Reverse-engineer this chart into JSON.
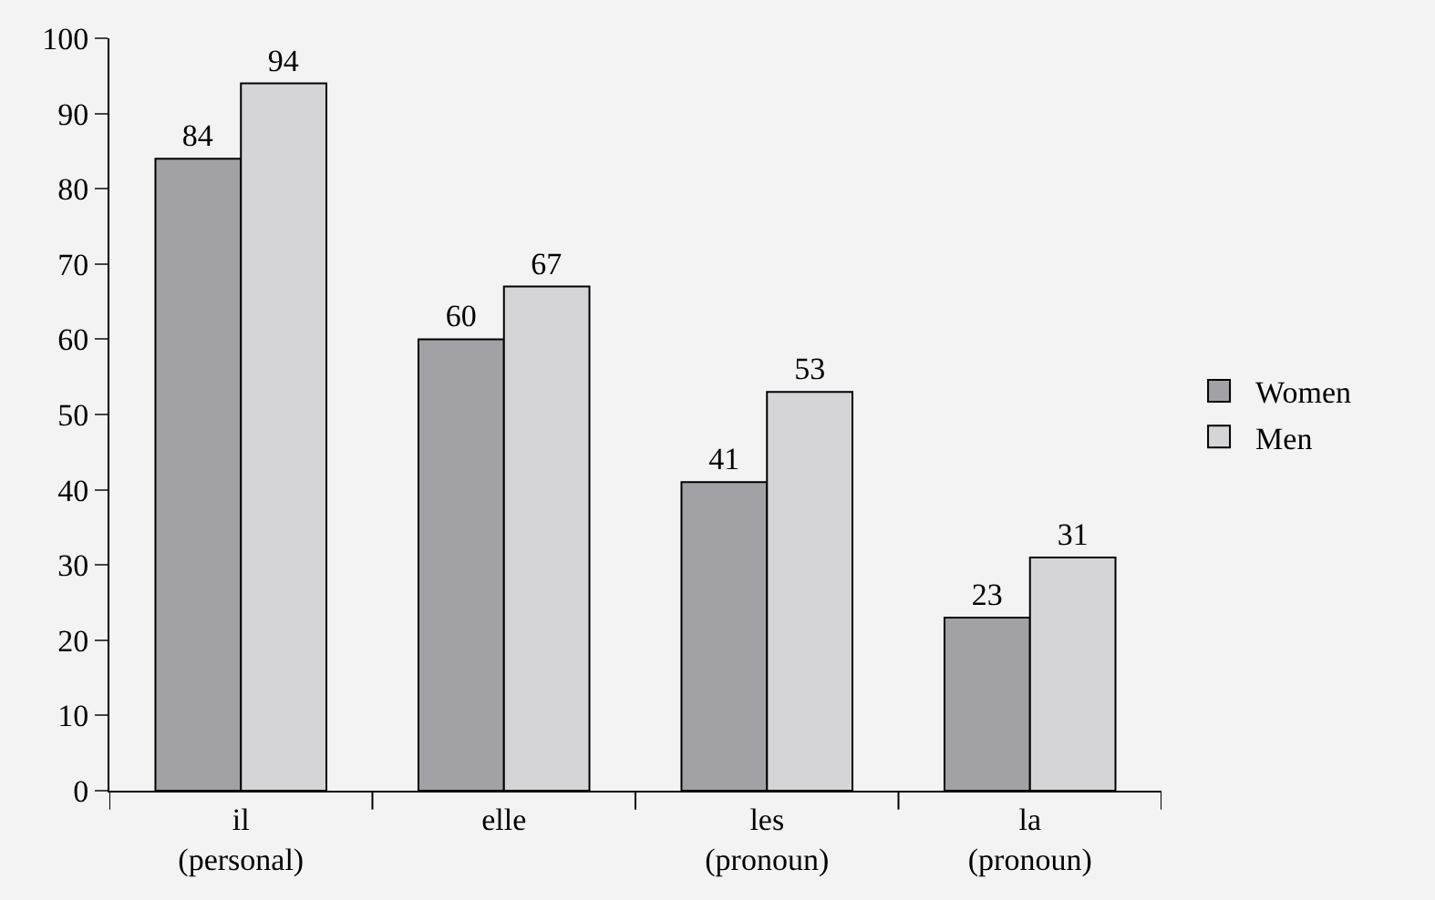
{
  "chart_data": {
    "type": "bar",
    "categories": [
      "il\n(personal)",
      "elle",
      "les\n(pronoun)",
      "la\n(pronoun)"
    ],
    "series": [
      {
        "name": "Women",
        "color": "#a2a2a6",
        "values": [
          84,
          60,
          41,
          23
        ]
      },
      {
        "name": "Men",
        "color": "#d5d5d8",
        "values": [
          94,
          67,
          53,
          31
        ]
      }
    ],
    "ylim": [
      0,
      100
    ],
    "yticks": [
      0,
      10,
      20,
      30,
      40,
      50,
      60,
      70,
      80,
      90,
      100
    ],
    "grid": false,
    "legend": "right",
    "data_labels": true
  }
}
